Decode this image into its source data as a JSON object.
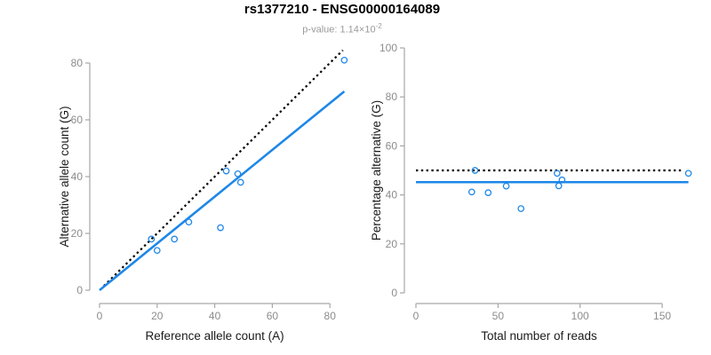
{
  "header": {
    "title": "rs1377210 - ENSG00000164089",
    "subtitle_base": "p-value: 1.14×10",
    "subtitle_exponent": "-2"
  },
  "colors": {
    "fit_blue": "#1E87E8",
    "identity_black": "#000000",
    "axis_gray": "#A6A6A6",
    "tick_label_gray": "#8C8C8C",
    "axis_title_color": "#1A1A1A",
    "title_color": "#000000",
    "subtitle_gray": "#9A9A9A",
    "background": "#FFFFFF"
  },
  "chart_data": [
    {
      "type": "scatter",
      "name": "allele-counts-scatter",
      "xlabel": "Reference allele count (A)",
      "ylabel": "Alternative allele count (G)",
      "xticks": [
        0,
        20,
        40,
        60,
        80
      ],
      "yticks": [
        0,
        20,
        40,
        60,
        80
      ],
      "xlim": [
        0,
        85
      ],
      "ylim": [
        0,
        85
      ],
      "grid": false,
      "legend": null,
      "points": [
        [
          18,
          18
        ],
        [
          20,
          14
        ],
        [
          26,
          18
        ],
        [
          31,
          24
        ],
        [
          42,
          22
        ],
        [
          44,
          42
        ],
        [
          48,
          41
        ],
        [
          49,
          38
        ],
        [
          85,
          81
        ]
      ],
      "lines": [
        {
          "name": "identity-line",
          "style": "dotted",
          "color": "black",
          "from": [
            1.5,
            1.5
          ],
          "to": [
            84.5,
            84.5
          ]
        },
        {
          "name": "fit-line",
          "style": "solid",
          "color": "blue",
          "from": [
            0,
            0
          ],
          "to": [
            85,
            70
          ]
        }
      ]
    },
    {
      "type": "scatter",
      "name": "percentage-vs-reads-scatter",
      "xlabel": "Total number of reads",
      "ylabel": "Percentage alternative (G)",
      "xticks": [
        0,
        50,
        100,
        150
      ],
      "yticks": [
        0,
        20,
        40,
        60,
        80,
        100
      ],
      "xlim": [
        0,
        168
      ],
      "ylim": [
        0,
        100
      ],
      "grid": false,
      "legend": null,
      "points": [
        [
          36,
          50
        ],
        [
          34,
          41.2
        ],
        [
          44,
          40.9
        ],
        [
          55,
          43.6
        ],
        [
          64,
          34.4
        ],
        [
          86,
          48.8
        ],
        [
          89,
          46.1
        ],
        [
          87,
          43.7
        ],
        [
          166,
          48.8
        ]
      ],
      "lines": [
        {
          "name": "expected-50pct-line",
          "style": "dotted",
          "color": "black",
          "from": [
            0,
            50
          ],
          "to": [
            163,
            50
          ]
        },
        {
          "name": "fit-line",
          "style": "solid",
          "color": "blue",
          "from": [
            0,
            45.2
          ],
          "to": [
            166,
            45.2
          ]
        }
      ]
    }
  ]
}
